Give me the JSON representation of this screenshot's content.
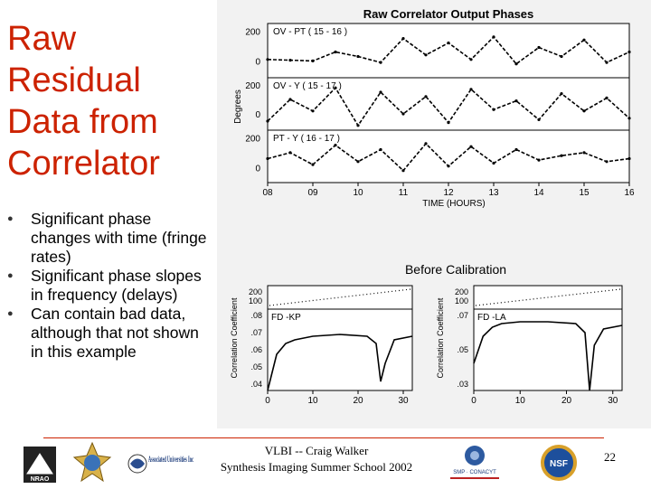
{
  "slide": {
    "title_lines": [
      "Raw",
      "Residual",
      "Data from",
      "Correlator"
    ],
    "bullets": [
      "Significant phase changes with time (fringe rates)",
      "Significant phase slopes in frequency (delays)",
      "Can contain bad data, although that not shown in this example"
    ],
    "footer": {
      "line1": "VLBI  -- Craig Walker",
      "line2": "Synthesis Imaging Summer School 2002"
    },
    "page_number": "22",
    "logos": {
      "nrao": "NRAO",
      "associated_universities": "Associated Universities Inc",
      "smp_conacyt": "SMP · CONACYT",
      "nsf": "NSF"
    }
  },
  "chart_data": [
    {
      "type": "line",
      "title": "Raw Correlator Output Phases",
      "xlabel": "TIME (HOURS)",
      "ylabel": "Degrees",
      "xlim": [
        8,
        16
      ],
      "x_ticks": [
        "08",
        "09",
        "10",
        "11",
        "12",
        "13",
        "14",
        "15",
        "16"
      ],
      "panels": [
        {
          "name": "OV - PT ( 15 - 16 )",
          "y_ticks": [
            "200",
            "0"
          ],
          "ylim": [
            -100,
            250
          ],
          "x": [
            8.0,
            8.5,
            9.0,
            9.5,
            10.0,
            10.5,
            11.0,
            11.5,
            12.0,
            12.5,
            13.0,
            13.5,
            14.0,
            14.5,
            15.0,
            15.5,
            16.0
          ],
          "y": [
            10,
            5,
            0,
            60,
            30,
            -10,
            150,
            40,
            120,
            10,
            160,
            -20,
            90,
            30,
            140,
            -10,
            60
          ]
        },
        {
          "name": "OV - Y ( 15 - 17 )",
          "y_ticks": [
            "200",
            "0"
          ],
          "ylim": [
            -100,
            250
          ],
          "x": [
            8.0,
            8.5,
            9.0,
            9.5,
            10.0,
            10.5,
            11.0,
            11.5,
            12.0,
            12.5,
            13.0,
            13.5,
            14.0,
            14.5,
            15.0,
            15.5,
            16.0
          ],
          "y": [
            -50,
            100,
            20,
            180,
            -80,
            150,
            0,
            120,
            -60,
            170,
            30,
            90,
            -40,
            140,
            20,
            110,
            -30
          ]
        },
        {
          "name": "PT - Y ( 16 - 17 )",
          "y_ticks": [
            "200",
            "0"
          ],
          "ylim": [
            -100,
            250
          ],
          "x": [
            8.0,
            8.5,
            9.0,
            9.5,
            10.0,
            10.5,
            11.0,
            11.5,
            12.0,
            12.5,
            13.0,
            13.5,
            14.0,
            14.5,
            15.0,
            15.5,
            16.0
          ],
          "y": [
            60,
            100,
            20,
            150,
            40,
            120,
            -20,
            160,
            10,
            140,
            30,
            120,
            50,
            80,
            100,
            40,
            60
          ]
        }
      ]
    },
    {
      "type": "line",
      "title": "Before Calibration",
      "ylabel": "Correlation Coefficient",
      "xlim": [
        0,
        32
      ],
      "x_ticks": [
        "0",
        "10",
        "20",
        "30"
      ],
      "panels": [
        {
          "name": "FD -KP",
          "phase_ticks": [
            "200",
            "100"
          ],
          "y_ticks": [
            ".08",
            ".07",
            ".06",
            ".05",
            ".04"
          ],
          "ylim": [
            0.04,
            0.085
          ],
          "x": [
            0,
            2,
            4,
            6,
            10,
            16,
            22,
            24,
            25,
            26,
            28,
            32
          ],
          "y": [
            0.04,
            0.06,
            0.066,
            0.068,
            0.07,
            0.071,
            0.07,
            0.066,
            0.045,
            0.055,
            0.068,
            0.07
          ]
        },
        {
          "name": "FD -LA",
          "phase_ticks": [
            "200",
            "100"
          ],
          "y_ticks": [
            ".07",
            ".05",
            ".03"
          ],
          "ylim": [
            0.03,
            0.075
          ],
          "x": [
            0,
            2,
            4,
            6,
            10,
            16,
            22,
            24,
            25,
            26,
            28,
            32
          ],
          "y": [
            0.045,
            0.06,
            0.065,
            0.067,
            0.068,
            0.068,
            0.067,
            0.062,
            0.03,
            0.055,
            0.064,
            0.066
          ]
        }
      ]
    }
  ]
}
